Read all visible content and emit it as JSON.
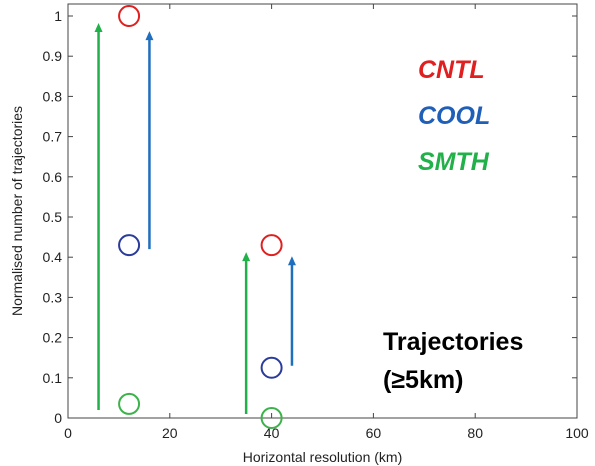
{
  "chart_data": {
    "type": "scatter",
    "xlabel": "Horizontal resolution (km)",
    "ylabel": "Normalised number of trajectories",
    "xlim": [
      0,
      100
    ],
    "ylim": [
      0,
      1
    ],
    "x_ticks": [
      "0",
      "20",
      "40",
      "60",
      "80",
      "100"
    ],
    "y_ticks": [
      "0",
      "0.1",
      "0.2",
      "0.3",
      "0.4",
      "0.5",
      "0.6",
      "0.7",
      "0.8",
      "0.9",
      "1"
    ],
    "grid": false,
    "legend_position": "top-right",
    "series": [
      {
        "name": "CNTL",
        "color": "#e02020",
        "marker": "open-circle",
        "points": [
          {
            "x": 12,
            "y": 1.0
          },
          {
            "x": 40,
            "y": 0.43
          }
        ]
      },
      {
        "name": "COOL",
        "color": "#2a3b9c",
        "marker": "open-circle",
        "points": [
          {
            "x": 12,
            "y": 0.43
          },
          {
            "x": 40,
            "y": 0.125
          }
        ]
      },
      {
        "name": "SMTH",
        "color": "#3cb34a",
        "marker": "open-circle",
        "points": [
          {
            "x": 12,
            "y": 0.035
          },
          {
            "x": 40,
            "y": 0.0
          }
        ]
      }
    ],
    "arrows": [
      {
        "color": "#22b04a",
        "x": 6,
        "y_from": 0.02,
        "y_to": 0.98
      },
      {
        "color": "#1f6fbf",
        "x": 16,
        "y_from": 0.42,
        "y_to": 0.96
      },
      {
        "color": "#22b04a",
        "x": 35,
        "y_from": 0.01,
        "y_to": 0.41
      },
      {
        "color": "#1f6fbf",
        "x": 44,
        "y_from": 0.13,
        "y_to": 0.4
      }
    ],
    "annotation": [
      "Trajectories",
      "(≥5km)"
    ]
  },
  "legend_colors": {
    "CNTL": "#e02020",
    "COOL": "#1f5fb8",
    "SMTH": "#22b04a"
  }
}
